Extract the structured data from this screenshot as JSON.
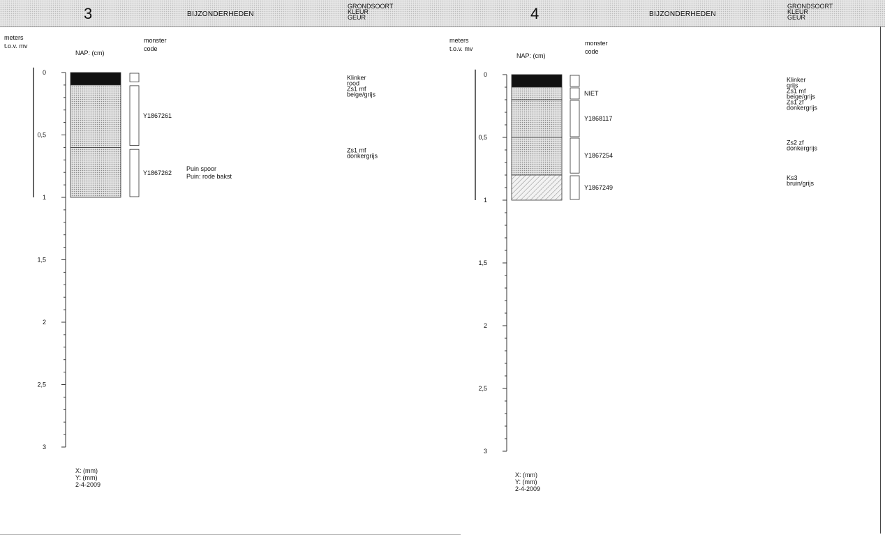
{
  "header": {
    "column_label": "BIJZONDERHEDEN",
    "properties": [
      "GRONDSOORT",
      "KLEUR",
      "GEUR"
    ]
  },
  "column_headers": {
    "depth": [
      "meters",
      "t.o.v. mv"
    ],
    "nap": "NAP: (cm)",
    "sample": [
      "monster",
      "code"
    ]
  },
  "depth_scale": {
    "unit": "m",
    "min": 0,
    "max": 3,
    "labels": [
      "0",
      "0,5",
      "1",
      "1,5",
      "2",
      "2,5",
      "3"
    ]
  },
  "colors": {
    "clinker": "#111111",
    "sand_fill": "#d4d4d4",
    "clay_fill": "#e2e2e2",
    "line": "#333333"
  },
  "borings": [
    {
      "number": "3",
      "layers": [
        {
          "top": 0,
          "bottom": 0.1,
          "material": "clinker"
        },
        {
          "top": 0.1,
          "bottom": 0.6,
          "material": "sand"
        },
        {
          "top": 0.6,
          "bottom": 1.0,
          "material": "sand"
        }
      ],
      "samples": [
        {
          "top": 0,
          "bottom": 0.08,
          "code": ""
        },
        {
          "top": 0.1,
          "bottom": 0.59,
          "code": "Y1867261"
        },
        {
          "top": 0.61,
          "bottom": 1.0,
          "code": "Y1867262"
        }
      ],
      "remarks": [
        {
          "depth": 0.82,
          "lines": [
            "Puin spoor",
            "Puin: rode bakst"
          ]
        }
      ],
      "descriptions": [
        {
          "depth": 0.02,
          "lines": [
            "Klinker",
            "rood",
            "Zs1 mf",
            "beige/grijs"
          ]
        },
        {
          "depth": 0.6,
          "lines": [
            "Zs1 mf",
            "donkergrijs"
          ]
        }
      ],
      "x": "X:  (mm)",
      "y": "Y:  (mm)",
      "date": "2-4-2009"
    },
    {
      "number": "4",
      "layers": [
        {
          "top": 0,
          "bottom": 0.1,
          "material": "clinker"
        },
        {
          "top": 0.1,
          "bottom": 0.2,
          "material": "sand"
        },
        {
          "top": 0.2,
          "bottom": 0.5,
          "material": "sand"
        },
        {
          "top": 0.5,
          "bottom": 0.8,
          "material": "sand"
        },
        {
          "top": 0.8,
          "bottom": 1.0,
          "material": "clay"
        }
      ],
      "samples": [
        {
          "top": 0,
          "bottom": 0.1,
          "code": ""
        },
        {
          "top": 0.1,
          "bottom": 0.2,
          "code": "NIET"
        },
        {
          "top": 0.2,
          "bottom": 0.5,
          "code": "Y1868117"
        },
        {
          "top": 0.5,
          "bottom": 0.79,
          "code": "Y1867254"
        },
        {
          "top": 0.8,
          "bottom": 1.0,
          "code": "Y1867249"
        }
      ],
      "remarks": [],
      "descriptions": [
        {
          "depth": 0.02,
          "lines": [
            "Klinker",
            "grijs",
            "Zs1 mf",
            "beige/grijs",
            "Zs1 zf",
            "donkergrijs"
          ]
        },
        {
          "depth": 0.52,
          "lines": [
            "Zs2 zf",
            "donkergrijs"
          ]
        },
        {
          "depth": 0.8,
          "lines": [
            "Ks3",
            "bruin/grijs"
          ]
        }
      ],
      "x": "X:  (mm)",
      "y": "Y:  (mm)",
      "date": "2-4-2009"
    }
  ]
}
